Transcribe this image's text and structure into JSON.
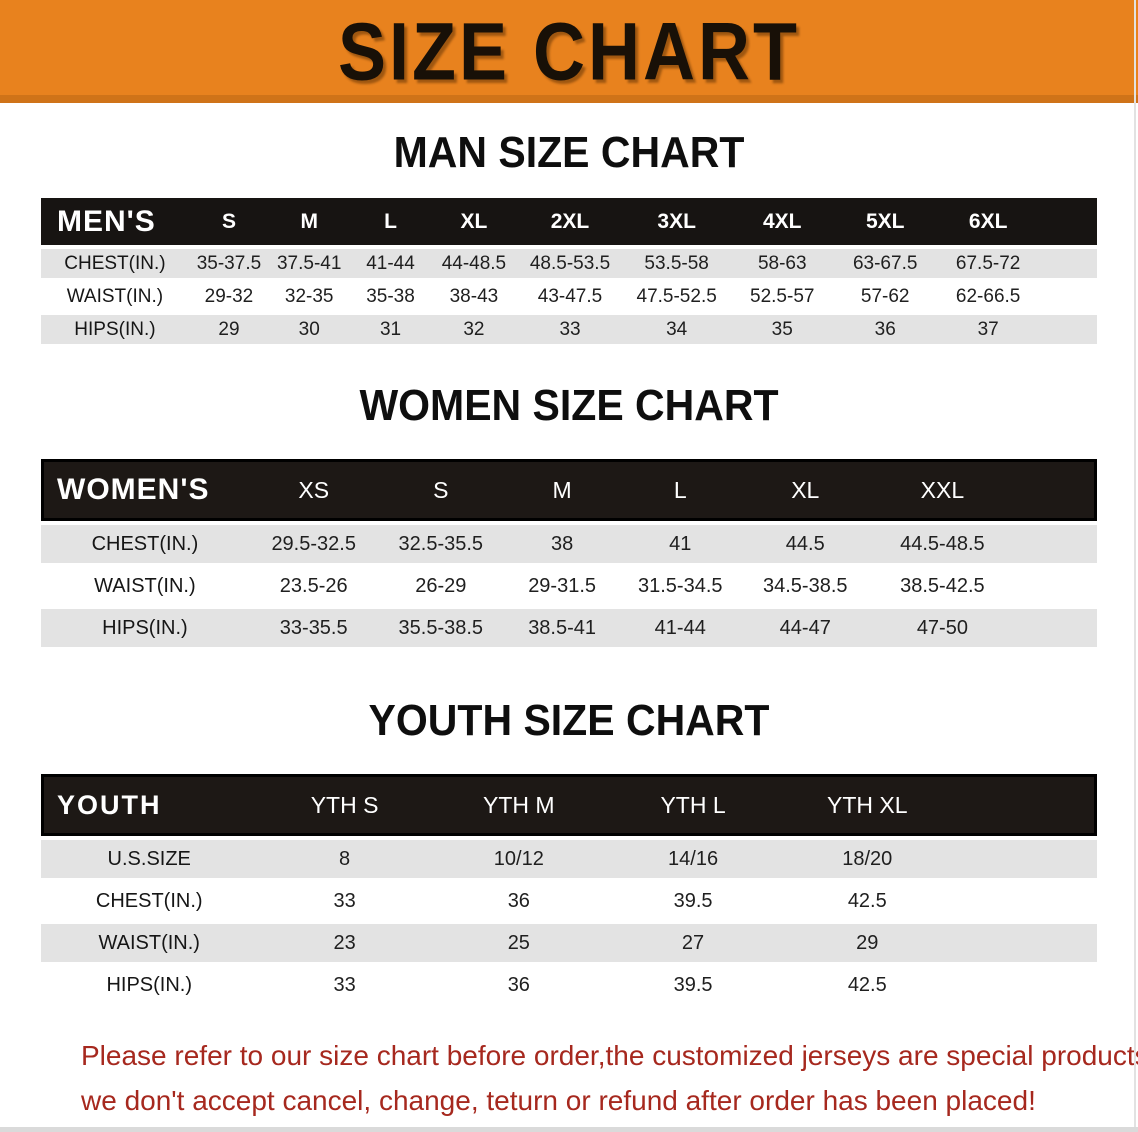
{
  "banner": {
    "title": "SIZE CHART"
  },
  "sections": [
    {
      "heading": "MAN SIZE CHART",
      "table": {
        "group_label": "MEN'S",
        "columns": [
          "S",
          "M",
          "L",
          "XL",
          "2XL",
          "3XL",
          "4XL",
          "5XL",
          "6XL"
        ],
        "rows": [
          {
            "label": "CHEST(IN.)",
            "values": [
              "35-37.5",
              "37.5-41",
              "41-44",
              "44-48.5",
              "48.5-53.5",
              "53.5-58",
              "58-63",
              "63-67.5",
              "67.5-72"
            ]
          },
          {
            "label": "WAIST(IN.)",
            "values": [
              "29-32",
              "32-35",
              "35-38",
              "38-43",
              "43-47.5",
              "47.5-52.5",
              "52.5-57",
              "57-62",
              "62-66.5"
            ]
          },
          {
            "label": "HIPS(IN.)",
            "values": [
              "29",
              "30",
              "31",
              "32",
              "33",
              "34",
              "35",
              "36",
              "37"
            ]
          }
        ]
      }
    },
    {
      "heading": "WOMEN SIZE CHART",
      "table": {
        "group_label": "WOMEN'S",
        "columns": [
          "XS",
          "S",
          "M",
          "L",
          "XL",
          "XXL"
        ],
        "rows": [
          {
            "label": "CHEST(IN.)",
            "values": [
              "29.5-32.5",
              "32.5-35.5",
              "38",
              "41",
              "44.5",
              "44.5-48.5"
            ]
          },
          {
            "label": "WAIST(IN.)",
            "values": [
              "23.5-26",
              "26-29",
              "29-31.5",
              "31.5-34.5",
              "34.5-38.5",
              "38.5-42.5"
            ]
          },
          {
            "label": "HIPS(IN.)",
            "values": [
              "33-35.5",
              "35.5-38.5",
              "38.5-41",
              "41-44",
              "44-47",
              "47-50"
            ]
          }
        ]
      }
    },
    {
      "heading": "YOUTH SIZE CHART",
      "table": {
        "group_label": "YOUTH",
        "columns": [
          "YTH S",
          "YTH M",
          "YTH L",
          "YTH XL"
        ],
        "rows": [
          {
            "label": "U.S.SIZE",
            "values": [
              "8",
              "10/12",
              "14/16",
              "18/20"
            ]
          },
          {
            "label": "CHEST(IN.)",
            "values": [
              "33",
              "36",
              "39.5",
              "42.5"
            ]
          },
          {
            "label": "WAIST(IN.)",
            "values": [
              "23",
              "25",
              "27",
              "29"
            ]
          },
          {
            "label": "HIPS(IN.)",
            "values": [
              "33",
              "36",
              "39.5",
              "42.5"
            ]
          }
        ]
      }
    }
  ],
  "footer": {
    "line1": "Please refer to our size chart before order,the customized jerseys are special products,",
    "line2": "we don't accept cancel, change, teturn or refund after order has been placed!"
  },
  "colors": {
    "banner_bg": "#E8821E",
    "header_bg": "#171412",
    "row_alt_bg": "#E3E3E3",
    "footer_text": "#A6281E"
  }
}
